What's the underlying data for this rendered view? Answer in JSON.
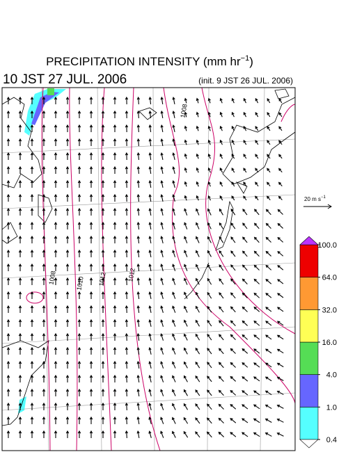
{
  "header": {
    "title": "PRECIPITATION INTENSITY (mm hr",
    "title_exponent": "−1",
    "title_close": ")",
    "valid_time": "10 JST 27 JUL. 2006",
    "init_time": "(init. 9 JST 26 JUL. 2006)"
  },
  "map": {
    "contour_labels": [
      "1008",
      "1008",
      "1010",
      "1012",
      "1012"
    ]
  },
  "legend": {
    "vector_reference": "20 m s",
    "vector_exponent": "−1",
    "colorbar": {
      "levels": [
        {
          "value": 0.4,
          "label": "0.4"
        },
        {
          "value": 1,
          "label": "1.0"
        },
        {
          "value": 4,
          "label": "4.0"
        },
        {
          "value": 16,
          "label": "16.0"
        },
        {
          "value": 32,
          "label": "32.0"
        },
        {
          "value": 64,
          "label": "64.0"
        },
        {
          "value": 100,
          "label": "100.0"
        }
      ],
      "colors": [
        "#55ffff",
        "#6666ff",
        "#55dd55",
        "#ffff55",
        "#ff9933",
        "#ee0000"
      ],
      "under_color": "#ffffff",
      "over_color": "#bb33ff"
    }
  }
}
